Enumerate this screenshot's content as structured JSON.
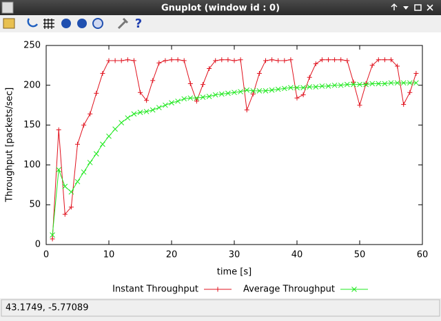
{
  "window": {
    "title": "Gnuplot (window id : 0)",
    "status": "43.1749, -5.77089"
  },
  "chart_data": {
    "type": "line",
    "xlabel": "time [s]",
    "ylabel": "Throughput [packets/sec]",
    "x": [
      1,
      2,
      3,
      4,
      5,
      6,
      7,
      8,
      9,
      10,
      11,
      12,
      13,
      14,
      15,
      16,
      17,
      18,
      19,
      20,
      21,
      22,
      23,
      24,
      25,
      26,
      27,
      28,
      29,
      30,
      31,
      32,
      33,
      34,
      35,
      36,
      37,
      38,
      39,
      40,
      41,
      42,
      43,
      44,
      45,
      46,
      47,
      48,
      49,
      50,
      51,
      52,
      53,
      54,
      55,
      56,
      57,
      58,
      59
    ],
    "series": [
      {
        "name": "Instant Throughput",
        "color": "#e0101c",
        "marker": "+",
        "values": [
          7,
          144,
          38,
          47,
          126,
          150,
          164,
          190,
          215,
          231,
          231,
          231,
          232,
          231,
          191,
          181,
          206,
          228,
          231,
          232,
          232,
          231,
          202,
          180,
          201,
          221,
          231,
          232,
          232,
          231,
          232,
          169,
          189,
          215,
          231,
          232,
          231,
          231,
          232,
          184,
          188,
          210,
          227,
          232,
          232,
          232,
          232,
          231,
          204,
          175,
          202,
          225,
          232,
          232,
          232,
          224,
          176,
          191,
          215
        ]
      },
      {
        "name": "Average Throughput",
        "color": "#1ee81e",
        "marker": "x",
        "values": [
          12,
          94,
          73,
          66,
          79,
          91,
          103,
          114,
          126,
          136,
          145,
          153,
          159,
          164,
          166,
          167,
          169,
          172,
          175,
          178,
          180,
          183,
          184,
          184,
          185,
          186,
          188,
          189,
          190,
          191,
          192,
          194,
          193,
          193,
          193,
          194,
          195,
          196,
          197,
          197,
          197,
          198,
          198,
          199,
          199,
          200,
          200,
          201,
          201,
          201,
          201,
          202,
          202,
          202,
          203,
          203,
          203,
          203,
          203
        ]
      }
    ],
    "xlim": [
      0,
      60
    ],
    "xticks": [
      0,
      10,
      20,
      30,
      40,
      50,
      60
    ],
    "ylim": [
      0,
      250
    ],
    "yticks": [
      0,
      50,
      100,
      150,
      200,
      250
    ]
  }
}
